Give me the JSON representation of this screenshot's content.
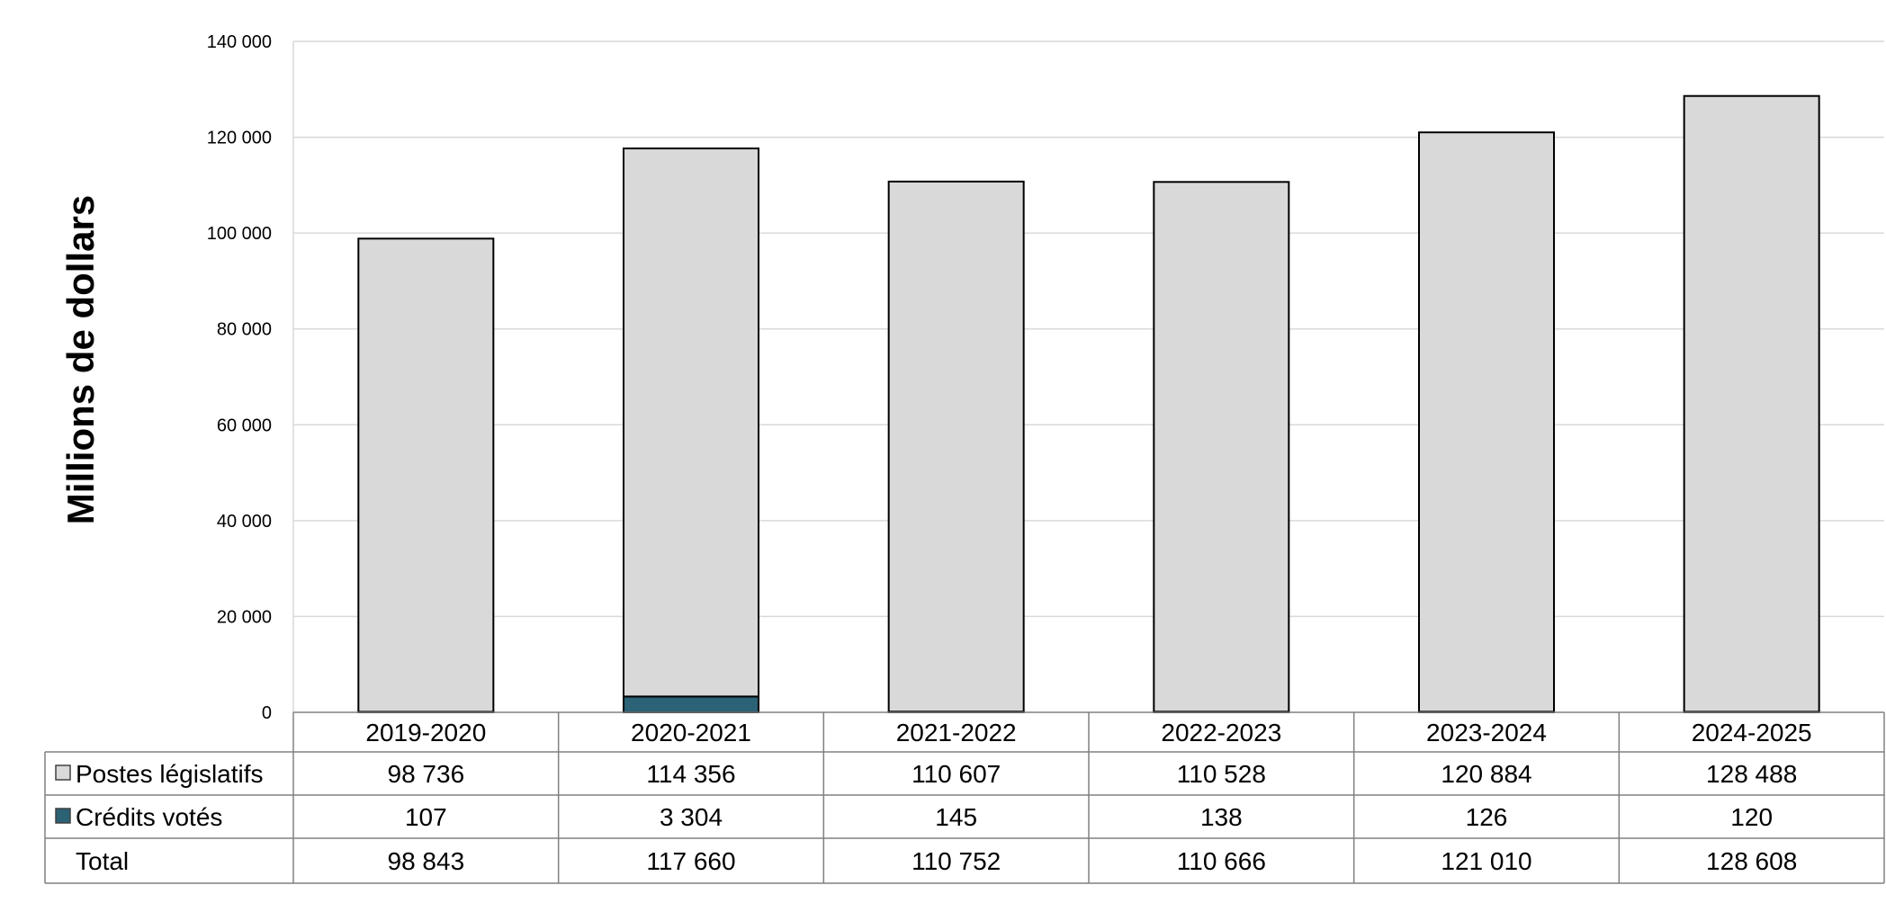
{
  "chart_data": {
    "type": "bar",
    "stacked": true,
    "ylabel": "Millions de dollars",
    "ylim": [
      0,
      140000
    ],
    "yticks": [
      0,
      20000,
      40000,
      60000,
      80000,
      100000,
      120000,
      140000
    ],
    "ytick_labels": [
      "0",
      "20 000",
      "40 000",
      "60 000",
      "80 000",
      "100 000",
      "120 000",
      "140 000"
    ],
    "grid": true,
    "categories": [
      "2019-2020",
      "2020-2021",
      "2021-2022",
      "2022-2023",
      "2023-2024",
      "2024-2025"
    ],
    "series": [
      {
        "name": "Postes législatifs",
        "color": "#d9d9d9",
        "values": [
          98736,
          114356,
          110607,
          110528,
          120884,
          128488
        ],
        "labels": [
          "98 736",
          "114 356",
          "110 607",
          "110 528",
          "120 884",
          "128 488"
        ]
      },
      {
        "name": "Crédits votés",
        "color": "#2b6275",
        "values": [
          107,
          3304,
          145,
          138,
          126,
          120
        ],
        "labels": [
          "107",
          "3 304",
          "145",
          "138",
          "126",
          "120"
        ]
      }
    ],
    "total": {
      "name": "Total",
      "values": [
        98843,
        117660,
        110752,
        110666,
        121010,
        128608
      ],
      "labels": [
        "98 843",
        "117 660",
        "110 752",
        "110 666",
        "121 010",
        "128 608"
      ]
    },
    "legend_placement": "data-table"
  }
}
